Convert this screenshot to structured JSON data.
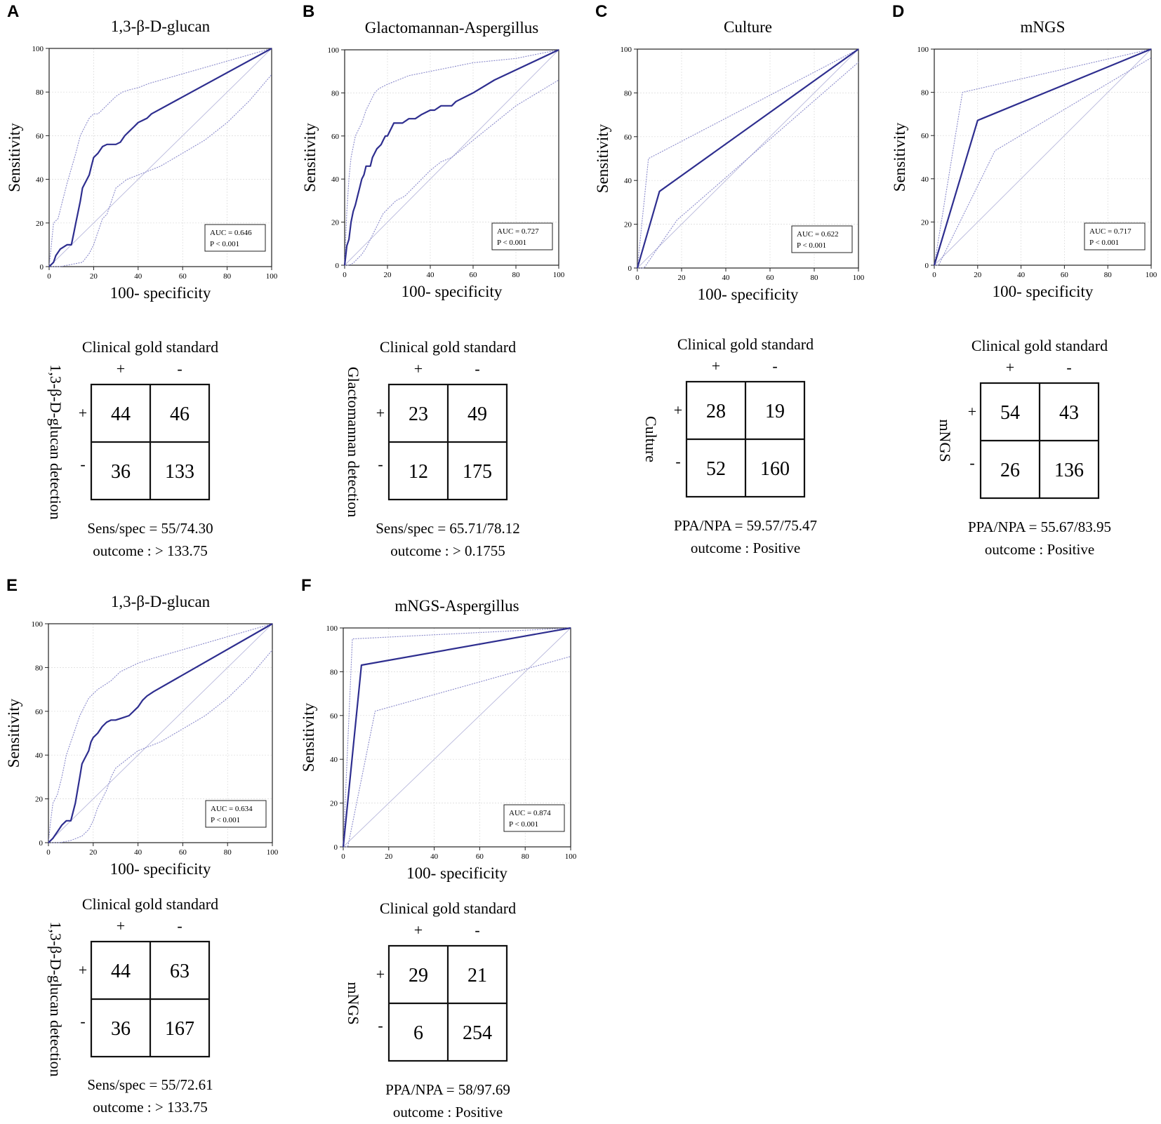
{
  "figure": {
    "bg": "#ffffff",
    "line_color": "#2e2e8f",
    "ci_color": "#8a8acb",
    "ref_color": "#b8b8dc"
  },
  "chart_data": [
    {
      "letter": "A",
      "type": "line",
      "title": "1,3-β-D-glucan",
      "xlabel": "100- specificity",
      "ylabel": "Sensitivity",
      "xlim": [
        0,
        100
      ],
      "ylim": [
        0,
        100
      ],
      "ticks": [
        "0",
        "20",
        "40",
        "60",
        "80",
        "100"
      ],
      "auc": "AUC = 0.646",
      "p": "P < 0.001",
      "series": [
        {
          "name": "ROC",
          "x": [
            0,
            2,
            3,
            5,
            8,
            10,
            11,
            12,
            13,
            14,
            15,
            16,
            17,
            18,
            19,
            20,
            22,
            24,
            26,
            28,
            30,
            32,
            34,
            36,
            38,
            40,
            42,
            44,
            46,
            100
          ],
          "y": [
            0,
            2,
            5,
            8,
            10,
            10,
            15,
            20,
            25,
            30,
            36,
            38,
            40,
            42,
            46,
            50,
            52,
            55,
            56,
            56,
            56,
            57,
            60,
            62,
            64,
            66,
            67,
            68,
            70,
            100
          ]
        },
        {
          "name": "CI upper",
          "x": [
            0,
            1,
            2,
            4,
            6,
            8,
            10,
            12,
            14,
            16,
            18,
            20,
            22,
            24,
            26,
            28,
            30,
            33,
            36,
            40,
            45,
            100
          ],
          "y": [
            0,
            10,
            20,
            22,
            30,
            38,
            45,
            52,
            60,
            64,
            68,
            70,
            70,
            72,
            74,
            76,
            78,
            80,
            81,
            82,
            84,
            100
          ]
        },
        {
          "name": "CI lower",
          "x": [
            0,
            5,
            10,
            15,
            18,
            20,
            22,
            24,
            26,
            28,
            30,
            35,
            40,
            45,
            50,
            60,
            70,
            80,
            90,
            100
          ],
          "y": [
            0,
            0,
            1,
            2,
            6,
            10,
            16,
            22,
            24,
            30,
            36,
            40,
            42,
            44,
            46,
            52,
            58,
            66,
            76,
            88
          ]
        },
        {
          "name": "Reference",
          "x": [
            0,
            100
          ],
          "y": [
            0,
            100
          ]
        }
      ],
      "table": {
        "header": "Clinical gold standard",
        "row_label": "1,3-β-D-glucan detection",
        "col_plus": "+",
        "col_minus": "-",
        "row_plus": "+",
        "row_minus": "-",
        "cells": [
          "44",
          "46",
          "36",
          "133"
        ]
      },
      "stat1": "Sens/spec = 55/74.30",
      "stat2": "outcome : > 133.75"
    },
    {
      "letter": "B",
      "type": "line",
      "title": "Glactomannan-Aspergillus",
      "xlabel": "100- specificity",
      "ylabel": "Sensitivity",
      "xlim": [
        0,
        100
      ],
      "ylim": [
        0,
        100
      ],
      "ticks": [
        "0",
        "20",
        "40",
        "60",
        "80",
        "100"
      ],
      "auc": "AUC = 0.727",
      "p": "P < 0.001",
      "series": [
        {
          "name": "ROC",
          "x": [
            0,
            1,
            2,
            3,
            4,
            5,
            6,
            7,
            8,
            9,
            10,
            12,
            13,
            15,
            17,
            18,
            19,
            20,
            22,
            23,
            25,
            27,
            30,
            33,
            36,
            40,
            42,
            45,
            48,
            50,
            52,
            60,
            70,
            100
          ],
          "y": [
            0,
            9,
            12,
            20,
            25,
            28,
            32,
            36,
            40,
            42,
            46,
            46,
            50,
            54,
            56,
            58,
            60,
            60,
            64,
            66,
            66,
            66,
            68,
            68,
            70,
            72,
            72,
            74,
            74,
            74,
            76,
            80,
            86,
            100
          ]
        },
        {
          "name": "CI upper",
          "x": [
            0,
            1,
            2,
            3,
            4,
            5,
            6,
            8,
            10,
            12,
            14,
            16,
            20,
            25,
            30,
            40,
            50,
            60,
            80,
            100
          ],
          "y": [
            0,
            25,
            40,
            50,
            55,
            60,
            62,
            66,
            72,
            76,
            80,
            82,
            84,
            86,
            88,
            90,
            92,
            94,
            96,
            100
          ]
        },
        {
          "name": "CI lower",
          "x": [
            0,
            2,
            4,
            6,
            8,
            10,
            12,
            14,
            16,
            18,
            20,
            24,
            28,
            32,
            36,
            40,
            45,
            50,
            55,
            60,
            70,
            80,
            90,
            100
          ],
          "y": [
            0,
            0,
            1,
            3,
            5,
            8,
            12,
            16,
            20,
            24,
            26,
            30,
            32,
            36,
            40,
            44,
            48,
            50,
            54,
            58,
            66,
            74,
            80,
            86
          ]
        },
        {
          "name": "Reference",
          "x": [
            0,
            100
          ],
          "y": [
            0,
            100
          ]
        }
      ],
      "table": {
        "header": "Clinical gold standard",
        "row_label": "Glactomannan detection",
        "col_plus": "+",
        "col_minus": "-",
        "row_plus": "+",
        "row_minus": "-",
        "cells": [
          "23",
          "49",
          "12",
          "175"
        ]
      },
      "stat1": "Sens/spec = 65.71/78.12",
      "stat2": "outcome : > 0.1755"
    },
    {
      "letter": "C",
      "type": "line",
      "title": "Culture",
      "xlabel": "100- specificity",
      "ylabel": "Sensitivity",
      "xlim": [
        0,
        100
      ],
      "ylim": [
        0,
        100
      ],
      "ticks": [
        "0",
        "20",
        "40",
        "60",
        "80",
        "100"
      ],
      "auc": "AUC = 0.622",
      "p": "P < 0.001",
      "series": [
        {
          "name": "ROC",
          "x": [
            0,
            10,
            100
          ],
          "y": [
            0,
            35,
            100
          ]
        },
        {
          "name": "CI upper",
          "x": [
            0,
            5,
            100
          ],
          "y": [
            0,
            50,
            100
          ]
        },
        {
          "name": "CI lower",
          "x": [
            0,
            3,
            18,
            100
          ],
          "y": [
            0,
            0,
            22,
            94
          ]
        },
        {
          "name": "Reference",
          "x": [
            0,
            100
          ],
          "y": [
            0,
            100
          ]
        }
      ],
      "table": {
        "header": "Clinical gold standard",
        "row_label": "Culture",
        "col_plus": "+",
        "col_minus": "-",
        "row_plus": "+",
        "row_minus": "-",
        "cells": [
          "28",
          "19",
          "52",
          "160"
        ]
      },
      "stat1": "PPA/NPA = 59.57/75.47",
      "stat2": "outcome : Positive"
    },
    {
      "letter": "D",
      "type": "line",
      "title": "mNGS",
      "xlabel": "100- specificity",
      "ylabel": "Sensitivity",
      "xlim": [
        0,
        100
      ],
      "ylim": [
        0,
        100
      ],
      "ticks": [
        "0",
        "20",
        "40",
        "60",
        "80",
        "100"
      ],
      "auc": "AUC = 0.717",
      "p": "P < 0.001",
      "series": [
        {
          "name": "ROC",
          "x": [
            0,
            20,
            100
          ],
          "y": [
            0,
            67,
            100
          ]
        },
        {
          "name": "CI upper",
          "x": [
            0,
            13,
            100
          ],
          "y": [
            0,
            80,
            100
          ]
        },
        {
          "name": "CI lower",
          "x": [
            0,
            2,
            28,
            100
          ],
          "y": [
            0,
            0,
            53,
            96
          ]
        },
        {
          "name": "Reference",
          "x": [
            0,
            100
          ],
          "y": [
            0,
            100
          ]
        }
      ],
      "table": {
        "header": "Clinical gold standard",
        "row_label": "mNGS",
        "col_plus": "+",
        "col_minus": "-",
        "row_plus": "+",
        "row_minus": "-",
        "cells": [
          "54",
          "43",
          "26",
          "136"
        ]
      },
      "stat1": "PPA/NPA = 55.67/83.95",
      "stat2": "outcome : Positive"
    },
    {
      "letter": "E",
      "type": "line",
      "title": "1,3-β-D-glucan",
      "xlabel": "100- specificity",
      "ylabel": "Sensitivity",
      "xlim": [
        0,
        100
      ],
      "ylim": [
        0,
        100
      ],
      "ticks": [
        "0",
        "20",
        "40",
        "60",
        "80",
        "100"
      ],
      "auc": "AUC = 0.634",
      "p": "P < 0.001",
      "series": [
        {
          "name": "ROC",
          "x": [
            0,
            2,
            4,
            6,
            8,
            10,
            11,
            12,
            13,
            14,
            15,
            16,
            17,
            18,
            19,
            20,
            22,
            24,
            26,
            28,
            30,
            33,
            36,
            38,
            40,
            42,
            44,
            47,
            100
          ],
          "y": [
            0,
            2,
            5,
            8,
            10,
            10,
            14,
            18,
            24,
            30,
            36,
            38,
            40,
            42,
            46,
            48,
            50,
            53,
            55,
            56,
            56,
            57,
            58,
            60,
            62,
            65,
            67,
            69,
            100
          ]
        },
        {
          "name": "CI upper",
          "x": [
            0,
            1,
            2,
            4,
            6,
            8,
            10,
            12,
            14,
            16,
            18,
            20,
            22,
            25,
            28,
            32,
            36,
            40,
            46,
            100
          ],
          "y": [
            0,
            10,
            18,
            22,
            30,
            40,
            46,
            52,
            58,
            62,
            66,
            68,
            70,
            72,
            74,
            78,
            80,
            82,
            84,
            100
          ]
        },
        {
          "name": "CI lower",
          "x": [
            0,
            5,
            10,
            15,
            18,
            20,
            22,
            24,
            26,
            28,
            30,
            35,
            40,
            45,
            50,
            60,
            70,
            80,
            90,
            100
          ],
          "y": [
            0,
            0,
            1,
            3,
            6,
            10,
            16,
            20,
            24,
            30,
            34,
            38,
            42,
            44,
            46,
            52,
            58,
            66,
            76,
            88
          ]
        },
        {
          "name": "Reference",
          "x": [
            0,
            100
          ],
          "y": [
            0,
            100
          ]
        }
      ],
      "table": {
        "header": "Clinical gold standard",
        "row_label": "1,3-β-D-glucan detection",
        "col_plus": "+",
        "col_minus": "-",
        "row_plus": "+",
        "row_minus": "-",
        "cells": [
          "44",
          "63",
          "36",
          "167"
        ]
      },
      "stat1": "Sens/spec = 55/72.61",
      "stat2": "outcome : > 133.75"
    },
    {
      "letter": "F",
      "type": "line",
      "title": "mNGS-Aspergillus",
      "xlabel": "100- specificity",
      "ylabel": "Sensitivity",
      "xlim": [
        0,
        100
      ],
      "ylim": [
        0,
        100
      ],
      "ticks": [
        "0",
        "20",
        "40",
        "60",
        "80",
        "100"
      ],
      "auc": "AUC = 0.874",
      "p": "P < 0.001",
      "series": [
        {
          "name": "ROC",
          "x": [
            0,
            8,
            100
          ],
          "y": [
            0,
            83,
            100
          ]
        },
        {
          "name": "CI upper",
          "x": [
            0,
            4,
            100
          ],
          "y": [
            0,
            95,
            100
          ]
        },
        {
          "name": "CI lower",
          "x": [
            0,
            2,
            14,
            100
          ],
          "y": [
            0,
            0,
            62,
            87
          ]
        },
        {
          "name": "Reference",
          "x": [
            0,
            100
          ],
          "y": [
            0,
            100
          ]
        }
      ],
      "table": {
        "header": "Clinical gold standard",
        "row_label": "mNGS",
        "col_plus": "+",
        "col_minus": "-",
        "row_plus": "+",
        "row_minus": "-",
        "cells": [
          "29",
          "21",
          "6",
          "254"
        ]
      },
      "stat1": "PPA/NPA = 58/97.69",
      "stat2": "outcome : Positive"
    }
  ]
}
